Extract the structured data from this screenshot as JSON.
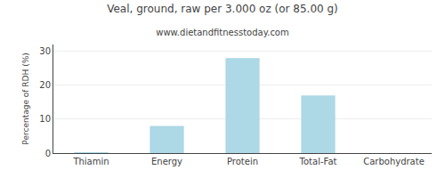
{
  "chart_data": {
    "type": "bar",
    "title": "Veal, ground, raw per 3.000 oz (or 85.00 g)",
    "subtitle": "www.dietandfitnesstoday.com",
    "categories": [
      "Thiamin",
      "Energy",
      "Protein",
      "Total-Fat",
      "Carbohydrate"
    ],
    "values": [
      0.2,
      8.0,
      28.0,
      17.0,
      0.0
    ],
    "color": "#ADD8E6",
    "ylabel": "Percentage of RDH (%)",
    "ylim": [
      0,
      32
    ],
    "yticks": [
      0,
      10,
      20,
      30
    ],
    "grid": true
  }
}
